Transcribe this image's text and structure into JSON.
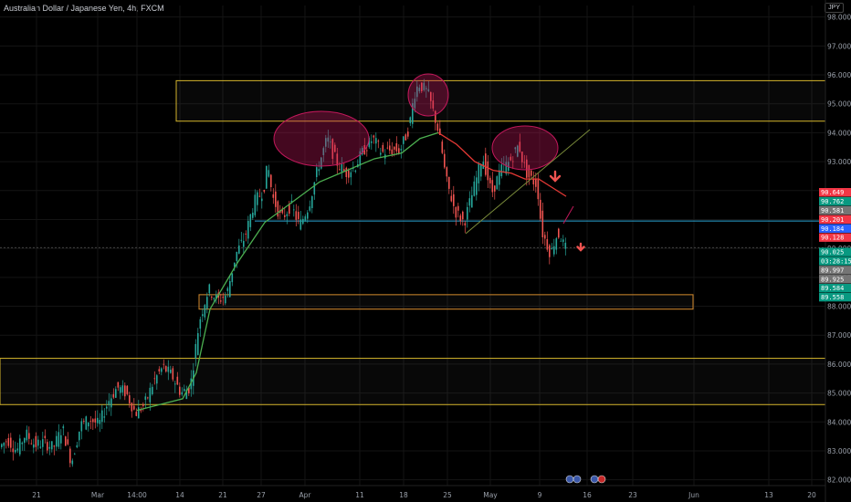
{
  "header": {
    "title": "Australian Dollar / Japanese Yen, 4h, FXCM",
    "currency": "JPY"
  },
  "colors": {
    "bg": "#000000",
    "up": "#26a69a",
    "down": "#ef5350",
    "grid": "#141414",
    "zone": "#d4b52c",
    "zone_orange": "#d48a2c",
    "ma_up": "#4caf50",
    "ma_down": "#e53935",
    "hline": "#2aa6d6",
    "ellipse": "#c2185b"
  },
  "chart_data": {
    "type": "candlestick",
    "y_ticks": [
      "98.000",
      "97.000",
      "96.000",
      "95.000",
      "94.000",
      "93.000",
      "92.000",
      "91.000",
      "90.000",
      "89.000",
      "88.000",
      "87.000",
      "86.000",
      "85.000",
      "84.000",
      "83.000",
      "82.000"
    ],
    "ylim": [
      81.8,
      98.4
    ],
    "x_ticks": [
      "21",
      "Mar",
      "14:00",
      "14",
      "21",
      "27",
      "Apr",
      "11",
      "18",
      "25",
      "May",
      "9",
      "16",
      "23",
      "Jun",
      "13",
      "20"
    ],
    "price_path": [
      [
        0,
        83.1
      ],
      [
        10,
        83.4
      ],
      [
        20,
        83.0
      ],
      [
        30,
        83.6
      ],
      [
        40,
        83.2
      ],
      [
        50,
        83.3
      ],
      [
        60,
        83.1
      ],
      [
        70,
        83.8
      ],
      [
        80,
        82.6
      ],
      [
        90,
        83.9
      ],
      [
        100,
        84.1
      ],
      [
        110,
        83.9
      ],
      [
        120,
        84.7
      ],
      [
        130,
        85.2
      ],
      [
        140,
        85.0
      ],
      [
        150,
        84.3
      ],
      [
        160,
        84.6
      ],
      [
        170,
        85.4
      ],
      [
        180,
        85.9
      ],
      [
        190,
        85.6
      ],
      [
        200,
        85.0
      ],
      [
        210,
        85.2
      ],
      [
        220,
        87.5
      ],
      [
        230,
        88.6
      ],
      [
        240,
        88.2
      ],
      [
        250,
        88.4
      ],
      [
        260,
        89.8
      ],
      [
        270,
        90.4
      ],
      [
        280,
        91.6
      ],
      [
        290,
        92.0
      ],
      [
        295,
        92.9
      ],
      [
        300,
        91.8
      ],
      [
        310,
        91.0
      ],
      [
        320,
        91.5
      ],
      [
        330,
        90.8
      ],
      [
        340,
        91.5
      ],
      [
        350,
        92.8
      ],
      [
        360,
        93.8
      ],
      [
        370,
        93.0
      ],
      [
        380,
        92.6
      ],
      [
        390,
        92.8
      ],
      [
        400,
        93.4
      ],
      [
        410,
        93.8
      ],
      [
        420,
        93.3
      ],
      [
        430,
        93.4
      ],
      [
        440,
        93.4
      ],
      [
        450,
        94.2
      ],
      [
        455,
        95.3
      ],
      [
        460,
        95.7
      ],
      [
        470,
        95.4
      ],
      [
        480,
        94.3
      ],
      [
        485,
        93.5
      ],
      [
        490,
        92.4
      ],
      [
        500,
        91.3
      ],
      [
        510,
        90.9
      ],
      [
        520,
        92.0
      ],
      [
        530,
        93.2
      ],
      [
        540,
        91.9
      ],
      [
        550,
        92.7
      ],
      [
        560,
        93.0
      ],
      [
        570,
        93.6
      ],
      [
        575,
        92.9
      ],
      [
        580,
        92.5
      ],
      [
        590,
        92.2
      ],
      [
        595,
        90.6
      ],
      [
        600,
        90.2
      ],
      [
        605,
        89.8
      ],
      [
        610,
        90.4
      ],
      [
        615,
        90.5
      ],
      [
        620,
        90.0
      ]
    ],
    "ma_path": [
      [
        230,
        87.9
      ],
      [
        260,
        89.5
      ],
      [
        290,
        90.9
      ],
      [
        320,
        91.6
      ],
      [
        350,
        92.3
      ],
      [
        380,
        92.7
      ],
      [
        410,
        93.1
      ],
      [
        440,
        93.3
      ],
      [
        460,
        93.8
      ],
      [
        480,
        94.0
      ],
      [
        500,
        93.6
      ],
      [
        520,
        93.0
      ],
      [
        540,
        92.7
      ],
      [
        560,
        92.6
      ],
      [
        575,
        92.4
      ],
      [
        590,
        92.4
      ],
      [
        605,
        92.1
      ],
      [
        620,
        91.8
      ]
    ],
    "zones": [
      {
        "from": 95.8,
        "to": 94.4,
        "x1": 193,
        "x2": 904,
        "color": "zone"
      },
      {
        "from": 88.4,
        "to": 87.9,
        "x1": 218,
        "x2": 759,
        "color": "zone_orange"
      },
      {
        "from": 86.2,
        "to": 84.6,
        "x1": 0,
        "x2": 904,
        "color": "zone"
      }
    ],
    "horizontal_line": 90.95,
    "price_tags": [
      {
        "value": "90.649",
        "color": "#f23645"
      },
      {
        "value": "90.762",
        "color": "#089981"
      },
      {
        "value": "90.581",
        "color": "#757575"
      },
      {
        "value": "90.201",
        "color": "#f23645"
      },
      {
        "value": "90.184",
        "color": "#2962ff"
      },
      {
        "value": "90.128",
        "color": "#f23645"
      },
      {
        "value": "90.025",
        "color": "#089981"
      },
      {
        "value": "03:28:15",
        "color": "#089981"
      },
      {
        "value": "89.997",
        "color": "#757575"
      },
      {
        "value": "89.925",
        "color": "#757575"
      },
      {
        "value": "89.584",
        "color": "#089981"
      },
      {
        "value": "89.558",
        "color": "#089981"
      }
    ]
  }
}
